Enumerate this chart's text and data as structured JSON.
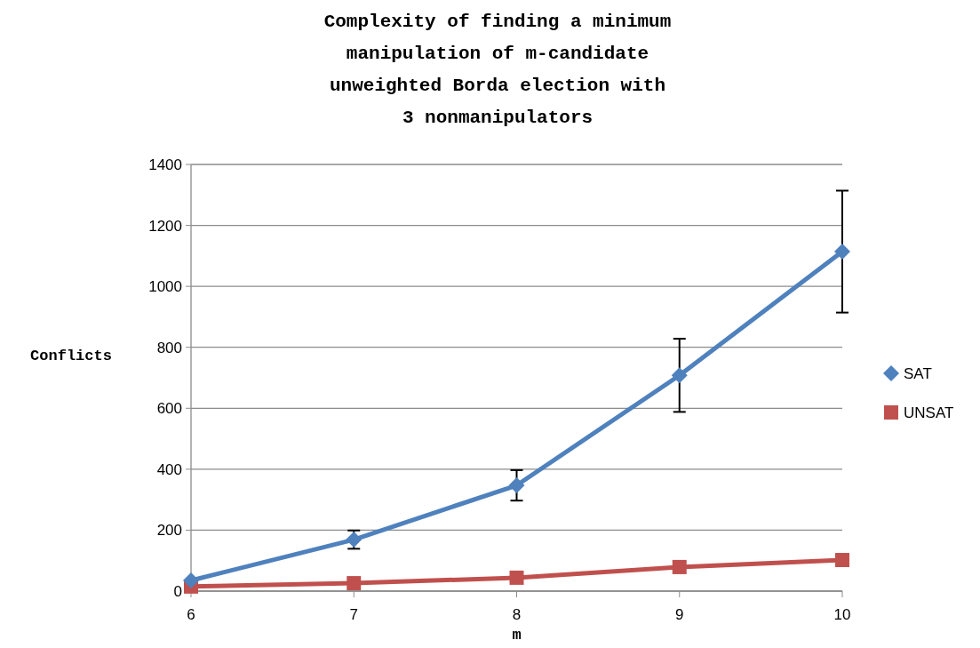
{
  "chart_data": {
    "type": "line",
    "title": "Complexity of finding a minimum\nmanipulation of m-candidate\nunweighted Borda election with\n3 nonmanipulators",
    "xlabel": "m",
    "ylabel": "Conflicts",
    "x": [
      6,
      7,
      8,
      9,
      10
    ],
    "xlim": [
      6,
      10
    ],
    "xticks": [
      6,
      7,
      8,
      9,
      10
    ],
    "ylim": [
      0,
      1400
    ],
    "yticks": [
      0,
      200,
      400,
      600,
      800,
      1000,
      1200,
      1400
    ],
    "grid": "y",
    "legend": "right",
    "series": [
      {
        "name": "SAT",
        "color": "#4f81bd",
        "marker": "diamond",
        "values": [
          35,
          169,
          347,
          708,
          1114
        ],
        "errors": [
          null,
          30,
          50,
          120,
          200
        ]
      },
      {
        "name": "UNSAT",
        "color": "#c0504d",
        "marker": "square",
        "values": [
          15,
          26,
          44,
          79,
          102
        ]
      }
    ]
  }
}
